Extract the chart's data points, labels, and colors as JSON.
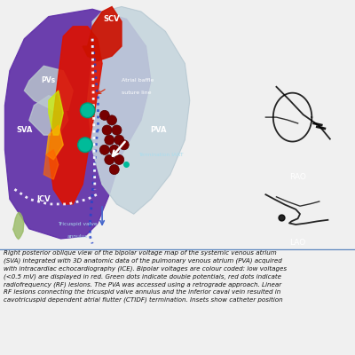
{
  "figure_bg": "#f0f0f0",
  "main_panel_bg": "#000000",
  "title_visible": false,
  "caption_text": "Right posterior oblique view of the bipolar voltage map of the systemic venous atrium\n(SVA) integrated with 3D anatomic data of the pulmonary venous atrium (PVA) acquired\nwith intracardiac echocardiography (ICE). Bipolar voltages are colour coded: low voltages\n(<0.5 mV) are displayed in red. Green dots indicate double potentials, red dots indicate\nradiofrequency (RF) lesions. The PVA was accessed using a retrograde approach. Linear\nRF lesions connecting the tricuspid valve annulus and the inferior caval vein resulted in\ncavotricuspid dependent atrial flutter (CTIDF) termination. Insets show catheter position",
  "caption_fontsize": 5.1,
  "caption_color": "#111111",
  "divider_color": "#5580bb",
  "divider_linewidth": 1.0,
  "label_color_white": "#ffffff",
  "label_color_cyan": "#aaddee",
  "label_color_black": "#000000",
  "rао_label": "RAO",
  "lao_label": "LAO",
  "inset_bg": "#b8c8d0",
  "inset_bg2": "#b0c0c8"
}
